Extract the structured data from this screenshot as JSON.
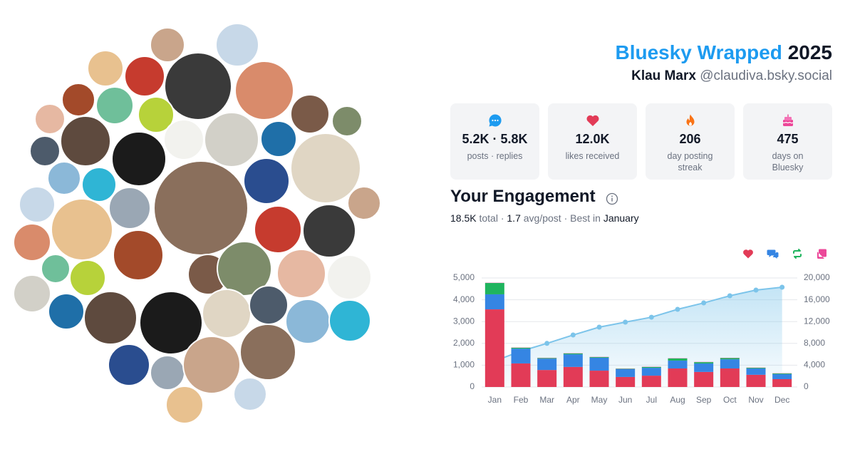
{
  "header": {
    "title": "Bluesky Wrapped",
    "year": "2025",
    "name": "Klau Marx",
    "handle": "@claudiva.bsky.social"
  },
  "stats": [
    {
      "value": "5.2K · 5.8K",
      "label": "posts · replies"
    },
    {
      "value": "12.0K",
      "label": "likes received"
    },
    {
      "value": "206",
      "label": "day posting streak"
    },
    {
      "value": "475",
      "label": "days on Bluesky"
    }
  ],
  "engagement": {
    "title": "Your Engagement",
    "summary": [
      {
        "text": "18.5K",
        "strong": true
      },
      {
        "text": " total · ",
        "strong": false
      },
      {
        "text": "1.7",
        "strong": true
      },
      {
        "text": " avg/post · Best in ",
        "strong": false
      },
      {
        "text": "January",
        "strong": true
      }
    ]
  },
  "chart_data": {
    "type": "bar",
    "stacked": true,
    "grid": true,
    "categories": [
      "Jan",
      "Feb",
      "Mar",
      "Apr",
      "May",
      "Jun",
      "Jul",
      "Aug",
      "Sep",
      "Oct",
      "Nov",
      "Dec"
    ],
    "ylim": [
      0,
      5000
    ],
    "yticks": [
      0,
      {
        "value": 1000,
        "label": "1,000"
      },
      {
        "value": 2000,
        "label": "2,000"
      },
      {
        "value": 3000,
        "label": "3,000"
      },
      {
        "value": 4000,
        "label": "4,000"
      },
      {
        "value": 5000,
        "label": "5,000"
      }
    ],
    "y2lim": [
      0,
      20000
    ],
    "y2ticks": [
      0,
      {
        "value": 4000,
        "label": "4,000"
      },
      {
        "value": 8000,
        "label": "8,000"
      },
      {
        "value": 12000,
        "label": "12,000"
      },
      {
        "value": 16000,
        "label": "16,000"
      },
      {
        "value": 20000,
        "label": "20,000"
      }
    ],
    "series": [
      {
        "type": "bar",
        "color": "#e23b57",
        "values": [
          3560,
          1080,
          780,
          920,
          750,
          460,
          520,
          850,
          690,
          850,
          560,
          360
        ]
      },
      {
        "type": "bar",
        "color": "#3585e3",
        "values": [
          690,
          680,
          520,
          580,
          590,
          360,
          360,
          360,
          390,
          420,
          290,
          230
        ]
      },
      {
        "type": "bar",
        "color": "#1fb45e",
        "values": [
          520,
          40,
          30,
          40,
          30,
          20,
          40,
          100,
          60,
          60,
          30,
          30
        ]
      },
      {
        "type": "bar",
        "color": "#ec4899",
        "values": [
          10,
          10,
          10,
          10,
          10,
          10,
          10,
          10,
          10,
          10,
          10,
          10
        ]
      },
      {
        "type": "line",
        "axis": "y2",
        "color": "#7cc4ea",
        "values": [
          4770,
          6570,
          8000,
          9540,
          10980,
          11900,
          12800,
          14250,
          15420,
          16730,
          17780,
          18300
        ]
      }
    ]
  }
}
